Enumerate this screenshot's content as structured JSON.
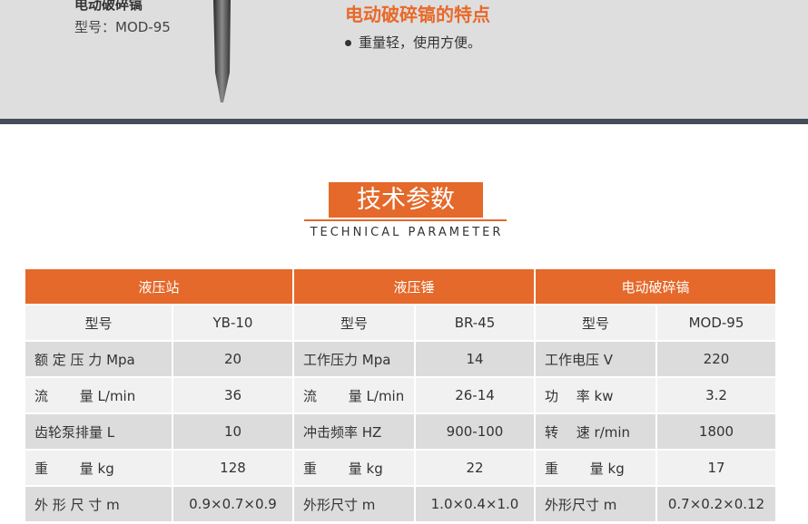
{
  "product": {
    "name": "电动破碎镐",
    "model": "型号：MOD-95"
  },
  "features": {
    "title": "电动破碎镐的特点",
    "items": [
      "重量轻，使用方便。"
    ]
  },
  "section": {
    "title": "技术参数",
    "subtitle": "TECHNICAL PARAMETER"
  },
  "colors": {
    "accent": "#e4692a",
    "bar": "#444c58"
  },
  "table": {
    "groups": [
      "液压站",
      "液压锤",
      "电动破碎镐"
    ],
    "rows": [
      [
        "型号",
        "YB-10",
        "型号",
        "BR-45",
        "型号",
        "MOD-95"
      ],
      [
        "额 定 压 力  Mpa",
        "20",
        "工作压力  Mpa",
        "14",
        "工作电压  V",
        "220"
      ],
      [
        "流　　  量  L/min",
        "36",
        "流　　  量  L/min",
        "26-14",
        "功　  率  kw",
        "3.2"
      ],
      [
        "齿轮泵排量  L",
        "10",
        "冲击频率  HZ",
        "900-100",
        "转　  速  r/min",
        "1800"
      ],
      [
        "重　　  量  kg",
        "128",
        "重　　  量  kg",
        "22",
        "重　　  量  kg",
        "17"
      ],
      [
        "外 形 尺 寸  m",
        "0.9×0.7×0.9",
        "外形尺寸  m",
        "1.0×0.4×1.0",
        "外形尺寸  m",
        "0.7×0.2×0.12"
      ]
    ]
  }
}
